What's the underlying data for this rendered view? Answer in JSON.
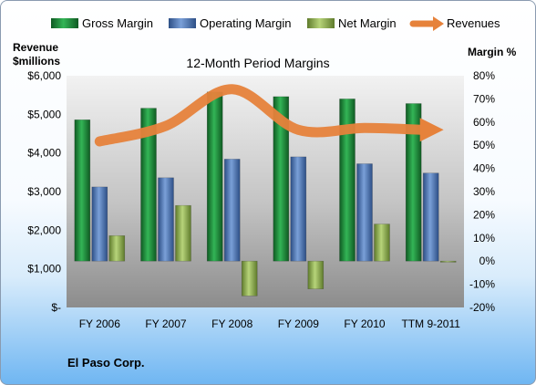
{
  "chart_data": {
    "type": "bar",
    "title": "12-Month Period Margins",
    "categories": [
      "FY 2006",
      "FY 2007",
      "FY 2008",
      "FY 2009",
      "FY 2010",
      "TTM 9-2011"
    ],
    "series": [
      {
        "name": "Gross Margin",
        "axis": "right",
        "type": "bar",
        "color": "#1f8a3c",
        "values": [
          61,
          66,
          73,
          71,
          70,
          68
        ]
      },
      {
        "name": "Operating Margin",
        "axis": "right",
        "type": "bar",
        "color": "#4f78b8",
        "values": [
          32,
          36,
          44,
          45,
          42,
          38
        ]
      },
      {
        "name": "Net Margin",
        "axis": "right",
        "type": "bar",
        "color": "#93b454",
        "values": [
          11,
          24,
          -15,
          -12,
          16,
          0
        ]
      },
      {
        "name": "Revenues",
        "axis": "left",
        "type": "line",
        "color": "#e6823b",
        "values": [
          4300,
          4700,
          5650,
          4600,
          4650,
          4600
        ]
      }
    ],
    "ylabel_left": "Revenue $millions",
    "ylabel_right": "Margin %",
    "ylim_left": [
      0,
      6000
    ],
    "ylim_right": [
      -20,
      80
    ],
    "yticks_left": [
      "$6,000",
      "$5,000",
      "$4,000",
      "$3,000",
      "$2,000",
      "$1,000",
      "$-"
    ],
    "yticks_right": [
      "80%",
      "70%",
      "60%",
      "50%",
      "40%",
      "30%",
      "20%",
      "10%",
      "0%",
      "-10%",
      "-20%"
    ],
    "legend_position": "top",
    "grid": false
  },
  "footer": {
    "company": "El Paso Corp."
  }
}
